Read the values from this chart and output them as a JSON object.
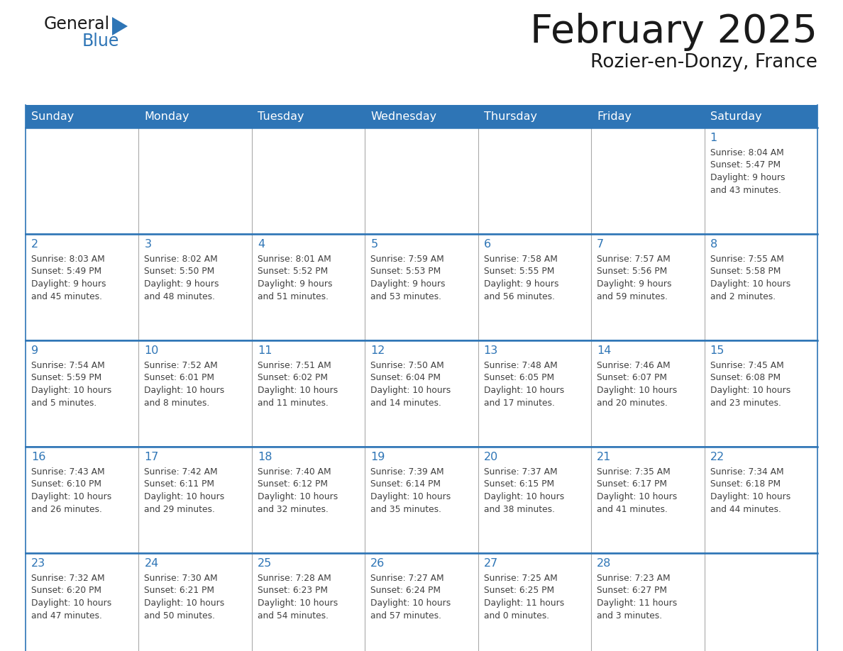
{
  "title": "February 2025",
  "subtitle": "Rozier-en-Donzy, France",
  "days_of_week": [
    "Sunday",
    "Monday",
    "Tuesday",
    "Wednesday",
    "Thursday",
    "Friday",
    "Saturday"
  ],
  "header_bg": "#2E75B6",
  "header_text": "#FFFFFF",
  "cell_bg": "#FFFFFF",
  "day_number_color": "#2E75B6",
  "info_text_color": "#404040",
  "border_color": "#2E75B6",
  "sep_color": "#AAAAAA",
  "calendar_data": [
    [
      null,
      null,
      null,
      null,
      null,
      null,
      {
        "day": 1,
        "sunrise": "8:04 AM",
        "sunset": "5:47 PM",
        "daylight": "9 hours and 43 minutes."
      }
    ],
    [
      {
        "day": 2,
        "sunrise": "8:03 AM",
        "sunset": "5:49 PM",
        "daylight": "9 hours and 45 minutes."
      },
      {
        "day": 3,
        "sunrise": "8:02 AM",
        "sunset": "5:50 PM",
        "daylight": "9 hours and 48 minutes."
      },
      {
        "day": 4,
        "sunrise": "8:01 AM",
        "sunset": "5:52 PM",
        "daylight": "9 hours and 51 minutes."
      },
      {
        "day": 5,
        "sunrise": "7:59 AM",
        "sunset": "5:53 PM",
        "daylight": "9 hours and 53 minutes."
      },
      {
        "day": 6,
        "sunrise": "7:58 AM",
        "sunset": "5:55 PM",
        "daylight": "9 hours and 56 minutes."
      },
      {
        "day": 7,
        "sunrise": "7:57 AM",
        "sunset": "5:56 PM",
        "daylight": "9 hours and 59 minutes."
      },
      {
        "day": 8,
        "sunrise": "7:55 AM",
        "sunset": "5:58 PM",
        "daylight": "10 hours and 2 minutes."
      }
    ],
    [
      {
        "day": 9,
        "sunrise": "7:54 AM",
        "sunset": "5:59 PM",
        "daylight": "10 hours and 5 minutes."
      },
      {
        "day": 10,
        "sunrise": "7:52 AM",
        "sunset": "6:01 PM",
        "daylight": "10 hours and 8 minutes."
      },
      {
        "day": 11,
        "sunrise": "7:51 AM",
        "sunset": "6:02 PM",
        "daylight": "10 hours and 11 minutes."
      },
      {
        "day": 12,
        "sunrise": "7:50 AM",
        "sunset": "6:04 PM",
        "daylight": "10 hours and 14 minutes."
      },
      {
        "day": 13,
        "sunrise": "7:48 AM",
        "sunset": "6:05 PM",
        "daylight": "10 hours and 17 minutes."
      },
      {
        "day": 14,
        "sunrise": "7:46 AM",
        "sunset": "6:07 PM",
        "daylight": "10 hours and 20 minutes."
      },
      {
        "day": 15,
        "sunrise": "7:45 AM",
        "sunset": "6:08 PM",
        "daylight": "10 hours and 23 minutes."
      }
    ],
    [
      {
        "day": 16,
        "sunrise": "7:43 AM",
        "sunset": "6:10 PM",
        "daylight": "10 hours and 26 minutes."
      },
      {
        "day": 17,
        "sunrise": "7:42 AM",
        "sunset": "6:11 PM",
        "daylight": "10 hours and 29 minutes."
      },
      {
        "day": 18,
        "sunrise": "7:40 AM",
        "sunset": "6:12 PM",
        "daylight": "10 hours and 32 minutes."
      },
      {
        "day": 19,
        "sunrise": "7:39 AM",
        "sunset": "6:14 PM",
        "daylight": "10 hours and 35 minutes."
      },
      {
        "day": 20,
        "sunrise": "7:37 AM",
        "sunset": "6:15 PM",
        "daylight": "10 hours and 38 minutes."
      },
      {
        "day": 21,
        "sunrise": "7:35 AM",
        "sunset": "6:17 PM",
        "daylight": "10 hours and 41 minutes."
      },
      {
        "day": 22,
        "sunrise": "7:34 AM",
        "sunset": "6:18 PM",
        "daylight": "10 hours and 44 minutes."
      }
    ],
    [
      {
        "day": 23,
        "sunrise": "7:32 AM",
        "sunset": "6:20 PM",
        "daylight": "10 hours and 47 minutes."
      },
      {
        "day": 24,
        "sunrise": "7:30 AM",
        "sunset": "6:21 PM",
        "daylight": "10 hours and 50 minutes."
      },
      {
        "day": 25,
        "sunrise": "7:28 AM",
        "sunset": "6:23 PM",
        "daylight": "10 hours and 54 minutes."
      },
      {
        "day": 26,
        "sunrise": "7:27 AM",
        "sunset": "6:24 PM",
        "daylight": "10 hours and 57 minutes."
      },
      {
        "day": 27,
        "sunrise": "7:25 AM",
        "sunset": "6:25 PM",
        "daylight": "11 hours and 0 minutes."
      },
      {
        "day": 28,
        "sunrise": "7:23 AM",
        "sunset": "6:27 PM",
        "daylight": "11 hours and 3 minutes."
      },
      null
    ]
  ]
}
